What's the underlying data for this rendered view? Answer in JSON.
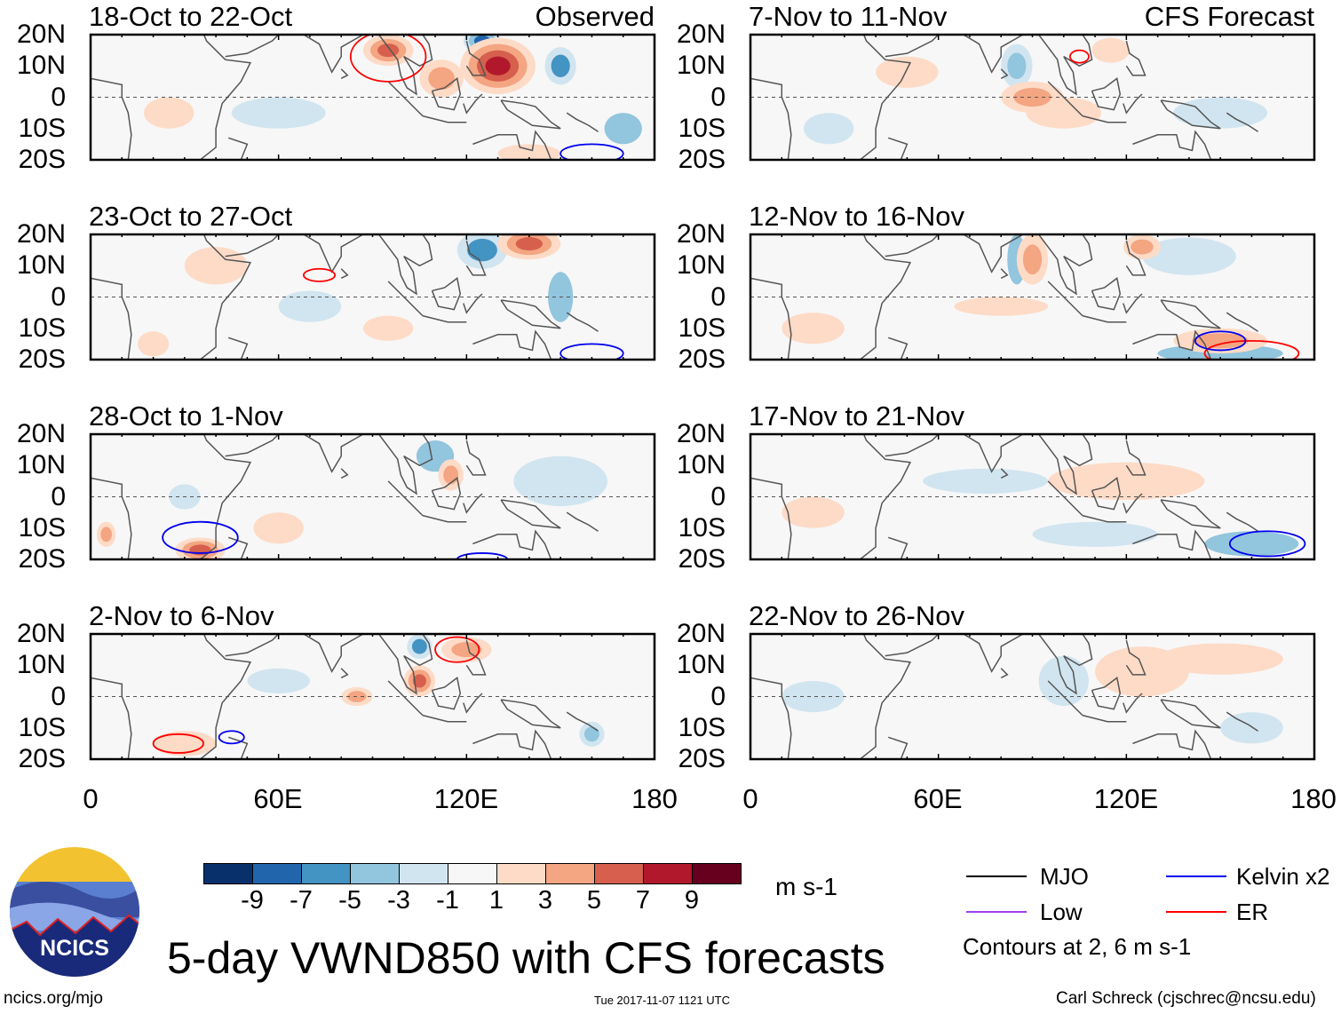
{
  "figure_title": "5-day VWND850 with CFS forecasts",
  "left_column_label": "Observed",
  "right_column_label": "CFS Forecast",
  "y_ticks": [
    "20N",
    "10N",
    "0",
    "10S",
    "20S"
  ],
  "x_ticks": [
    "0",
    "60E",
    "120E",
    "180"
  ],
  "colorbar": {
    "colors": [
      "#08306b",
      "#2166ac",
      "#4393c3",
      "#92c5de",
      "#d1e5f0",
      "#f7f7f7",
      "#fddbc7",
      "#f4a582",
      "#d6604d",
      "#b2182b",
      "#67001f"
    ],
    "labels": [
      "-9",
      "-7",
      "-5",
      "-3",
      "-1",
      "1",
      "3",
      "5",
      "7",
      "9"
    ],
    "units": "m s-1"
  },
  "legend": {
    "items": [
      {
        "label": "MJO",
        "color": "#000000"
      },
      {
        "label": "Low",
        "color": "#a040f0"
      },
      {
        "label": "Kelvin x2",
        "color": "#0000ee"
      },
      {
        "label": "ER",
        "color": "#ff0000"
      }
    ],
    "contour_note": "Contours at 2, 6 m s-1"
  },
  "logo_text": "NCICS",
  "footer": {
    "left": "ncics.org/mjo",
    "center": "Tue 2017-11-07 1121 UTC",
    "right": "Carl Schreck (cjschrec@ncsu.edu)"
  },
  "panels": [
    {
      "title": "18-Oct to 22-Oct",
      "features": [
        [
          130,
          10,
          12,
          9,
          9
        ],
        [
          125,
          18,
          6,
          4,
          -7
        ],
        [
          150,
          10,
          5,
          6,
          -5
        ],
        [
          95,
          15,
          8,
          5,
          6
        ],
        [
          112,
          6,
          7,
          6,
          5
        ],
        [
          170,
          -10,
          6,
          5,
          -3
        ],
        [
          25,
          -5,
          8,
          5,
          2
        ],
        [
          60,
          -5,
          15,
          5,
          -2
        ],
        [
          140,
          -18,
          10,
          3,
          3
        ]
      ],
      "contours": [
        {
          "type": "ER",
          "lon": 95,
          "lat": 13,
          "rl": 12,
          "rt": 8
        },
        {
          "type": "Kelvin",
          "lon": 160,
          "lat": -18,
          "rl": 10,
          "rt": 3
        }
      ]
    },
    {
      "title": "23-Oct to 27-Oct",
      "features": [
        [
          125,
          15,
          8,
          6,
          -5
        ],
        [
          140,
          17,
          10,
          5,
          6
        ],
        [
          70,
          -3,
          10,
          5,
          -2
        ],
        [
          150,
          0,
          4,
          8,
          -3
        ],
        [
          40,
          10,
          10,
          6,
          2
        ],
        [
          95,
          -10,
          8,
          4,
          2
        ],
        [
          20,
          -15,
          5,
          4,
          3
        ]
      ],
      "contours": [
        {
          "type": "ER",
          "lon": 73,
          "lat": 7,
          "rl": 5,
          "rt": 2
        },
        {
          "type": "Kelvin",
          "lon": 160,
          "lat": -18,
          "rl": 10,
          "rt": 3
        }
      ]
    },
    {
      "title": "28-Oct to 1-Nov",
      "features": [
        [
          115,
          7,
          4,
          5,
          5
        ],
        [
          35,
          -17,
          8,
          4,
          6
        ],
        [
          5,
          -12,
          3,
          4,
          5
        ],
        [
          110,
          13,
          6,
          5,
          -3
        ],
        [
          150,
          5,
          15,
          8,
          -1
        ],
        [
          60,
          -10,
          8,
          5,
          2
        ],
        [
          30,
          0,
          5,
          4,
          -2
        ]
      ],
      "contours": [
        {
          "type": "Kelvin",
          "lon": 35,
          "lat": -13,
          "rl": 12,
          "rt": 5
        },
        {
          "type": "Kelvin",
          "lon": 125,
          "lat": -20,
          "rl": 8,
          "rt": 2
        }
      ]
    },
    {
      "title": "2-Nov to 6-Nov",
      "features": [
        [
          105,
          5,
          5,
          5,
          6
        ],
        [
          120,
          15,
          8,
          4,
          5
        ],
        [
          85,
          0,
          5,
          3,
          5
        ],
        [
          105,
          16,
          4,
          4,
          -5
        ],
        [
          160,
          -12,
          4,
          4,
          -4
        ],
        [
          30,
          -15,
          10,
          4,
          2
        ],
        [
          60,
          5,
          10,
          4,
          -2
        ]
      ],
      "contours": [
        {
          "type": "ER",
          "lon": 117,
          "lat": 15,
          "rl": 7,
          "rt": 4
        },
        {
          "type": "ER",
          "lon": 28,
          "lat": -15,
          "rl": 8,
          "rt": 3
        },
        {
          "type": "Kelvin",
          "lon": 45,
          "lat": -13,
          "rl": 4,
          "rt": 2
        }
      ]
    },
    {
      "title": "7-Nov to 11-Nov",
      "features": [
        [
          90,
          0,
          10,
          5,
          5
        ],
        [
          85,
          10,
          5,
          7,
          -4
        ],
        [
          100,
          -5,
          12,
          5,
          2
        ],
        [
          115,
          15,
          6,
          4,
          3
        ],
        [
          50,
          8,
          10,
          5,
          2
        ],
        [
          150,
          -5,
          15,
          5,
          -2
        ],
        [
          25,
          -10,
          8,
          5,
          -2
        ]
      ],
      "contours": [
        {
          "type": "ER",
          "lon": 105,
          "lat": 13,
          "rl": 3,
          "rt": 2
        }
      ]
    },
    {
      "title": "12-Nov to 16-Nov",
      "features": [
        [
          90,
          12,
          5,
          8,
          5
        ],
        [
          125,
          16,
          6,
          4,
          5
        ],
        [
          150,
          -14,
          15,
          4,
          5
        ],
        [
          85,
          12,
          3,
          8,
          -3
        ],
        [
          150,
          -18,
          20,
          3,
          -3
        ],
        [
          80,
          -3,
          15,
          3,
          2
        ],
        [
          140,
          13,
          15,
          6,
          -2
        ],
        [
          20,
          -10,
          10,
          5,
          2
        ]
      ],
      "contours": [
        {
          "type": "ER",
          "lon": 160,
          "lat": -18,
          "rl": 15,
          "rt": 4
        },
        {
          "type": "Kelvin",
          "lon": 150,
          "lat": -14,
          "rl": 8,
          "rt": 3
        }
      ]
    },
    {
      "title": "17-Nov to 21-Nov",
      "features": [
        [
          120,
          5,
          25,
          6,
          2
        ],
        [
          75,
          5,
          20,
          4,
          -2
        ],
        [
          160,
          -15,
          15,
          4,
          -3
        ],
        [
          20,
          -5,
          10,
          5,
          2
        ],
        [
          110,
          -12,
          20,
          4,
          -1
        ]
      ],
      "contours": [
        {
          "type": "Kelvin",
          "lon": 165,
          "lat": -15,
          "rl": 12,
          "rt": 4
        }
      ]
    },
    {
      "title": "22-Nov to 26-Nov",
      "features": [
        [
          125,
          8,
          15,
          8,
          2
        ],
        [
          150,
          12,
          20,
          5,
          2
        ],
        [
          100,
          5,
          8,
          8,
          -2
        ],
        [
          20,
          0,
          10,
          5,
          -1
        ],
        [
          160,
          -10,
          10,
          5,
          -1
        ]
      ],
      "contours": []
    }
  ]
}
